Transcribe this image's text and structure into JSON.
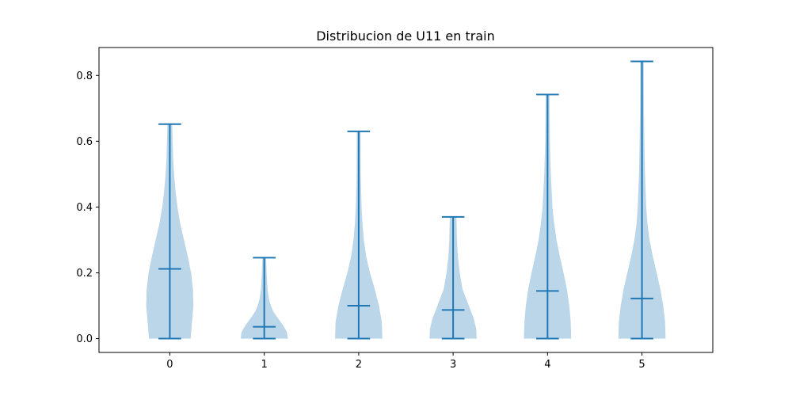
{
  "chart_data": {
    "type": "violin",
    "title": "Distribucion de U11 en train",
    "xlabel": "",
    "ylabel": "",
    "categories": [
      "0",
      "1",
      "2",
      "3",
      "4",
      "5"
    ],
    "xlim": [
      -0.75,
      5.75
    ],
    "ylim": [
      -0.042,
      0.885
    ],
    "yticks": [
      0.0,
      0.2,
      0.4,
      0.6,
      0.8
    ],
    "ytick_labels": [
      "0.0",
      "0.2",
      "0.4",
      "0.6",
      "0.8"
    ],
    "fill_color": "#1f77b4",
    "fill_opacity": 0.3,
    "line_color": "#1f77b4",
    "grid": false,
    "legend": "none",
    "violins": [
      {
        "category": "0",
        "min": 0.0,
        "max": 0.652,
        "median": 0.212,
        "density": [
          [
            0.0,
            0.22
          ],
          [
            0.05,
            0.235
          ],
          [
            0.1,
            0.25
          ],
          [
            0.15,
            0.245
          ],
          [
            0.2,
            0.225
          ],
          [
            0.25,
            0.19
          ],
          [
            0.3,
            0.15
          ],
          [
            0.35,
            0.11
          ],
          [
            0.4,
            0.08
          ],
          [
            0.45,
            0.06
          ],
          [
            0.5,
            0.045
          ],
          [
            0.55,
            0.035
          ],
          [
            0.6,
            0.03
          ],
          [
            0.652,
            0.025
          ]
        ]
      },
      {
        "category": "1",
        "min": 0.0,
        "max": 0.246,
        "median": 0.036,
        "density": [
          [
            0.0,
            0.25
          ],
          [
            0.02,
            0.24
          ],
          [
            0.04,
            0.2
          ],
          [
            0.06,
            0.15
          ],
          [
            0.08,
            0.1
          ],
          [
            0.1,
            0.07
          ],
          [
            0.12,
            0.05
          ],
          [
            0.15,
            0.035
          ],
          [
            0.2,
            0.025
          ],
          [
            0.246,
            0.02
          ]
        ]
      },
      {
        "category": "2",
        "min": 0.0,
        "max": 0.63,
        "median": 0.1,
        "density": [
          [
            0.0,
            0.25
          ],
          [
            0.05,
            0.245
          ],
          [
            0.1,
            0.215
          ],
          [
            0.15,
            0.17
          ],
          [
            0.2,
            0.12
          ],
          [
            0.25,
            0.08
          ],
          [
            0.3,
            0.055
          ],
          [
            0.35,
            0.04
          ],
          [
            0.4,
            0.03
          ],
          [
            0.5,
            0.022
          ],
          [
            0.63,
            0.02
          ]
        ]
      },
      {
        "category": "3",
        "min": 0.0,
        "max": 0.37,
        "median": 0.087,
        "density": [
          [
            0.0,
            0.25
          ],
          [
            0.03,
            0.245
          ],
          [
            0.06,
            0.22
          ],
          [
            0.09,
            0.18
          ],
          [
            0.12,
            0.14
          ],
          [
            0.15,
            0.1
          ],
          [
            0.2,
            0.07
          ],
          [
            0.25,
            0.05
          ],
          [
            0.3,
            0.04
          ],
          [
            0.37,
            0.035
          ]
        ]
      },
      {
        "category": "4",
        "min": 0.0,
        "max": 0.742,
        "median": 0.145,
        "density": [
          [
            0.0,
            0.25
          ],
          [
            0.05,
            0.245
          ],
          [
            0.1,
            0.23
          ],
          [
            0.15,
            0.205
          ],
          [
            0.2,
            0.17
          ],
          [
            0.25,
            0.13
          ],
          [
            0.3,
            0.095
          ],
          [
            0.35,
            0.07
          ],
          [
            0.4,
            0.052
          ],
          [
            0.5,
            0.035
          ],
          [
            0.6,
            0.025
          ],
          [
            0.742,
            0.02
          ]
        ]
      },
      {
        "category": "5",
        "min": 0.0,
        "max": 0.843,
        "median": 0.122,
        "density": [
          [
            0.0,
            0.25
          ],
          [
            0.05,
            0.245
          ],
          [
            0.1,
            0.225
          ],
          [
            0.15,
            0.195
          ],
          [
            0.2,
            0.155
          ],
          [
            0.25,
            0.115
          ],
          [
            0.3,
            0.08
          ],
          [
            0.35,
            0.058
          ],
          [
            0.4,
            0.045
          ],
          [
            0.5,
            0.032
          ],
          [
            0.6,
            0.025
          ],
          [
            0.7,
            0.02
          ],
          [
            0.843,
            0.018
          ]
        ]
      }
    ]
  }
}
